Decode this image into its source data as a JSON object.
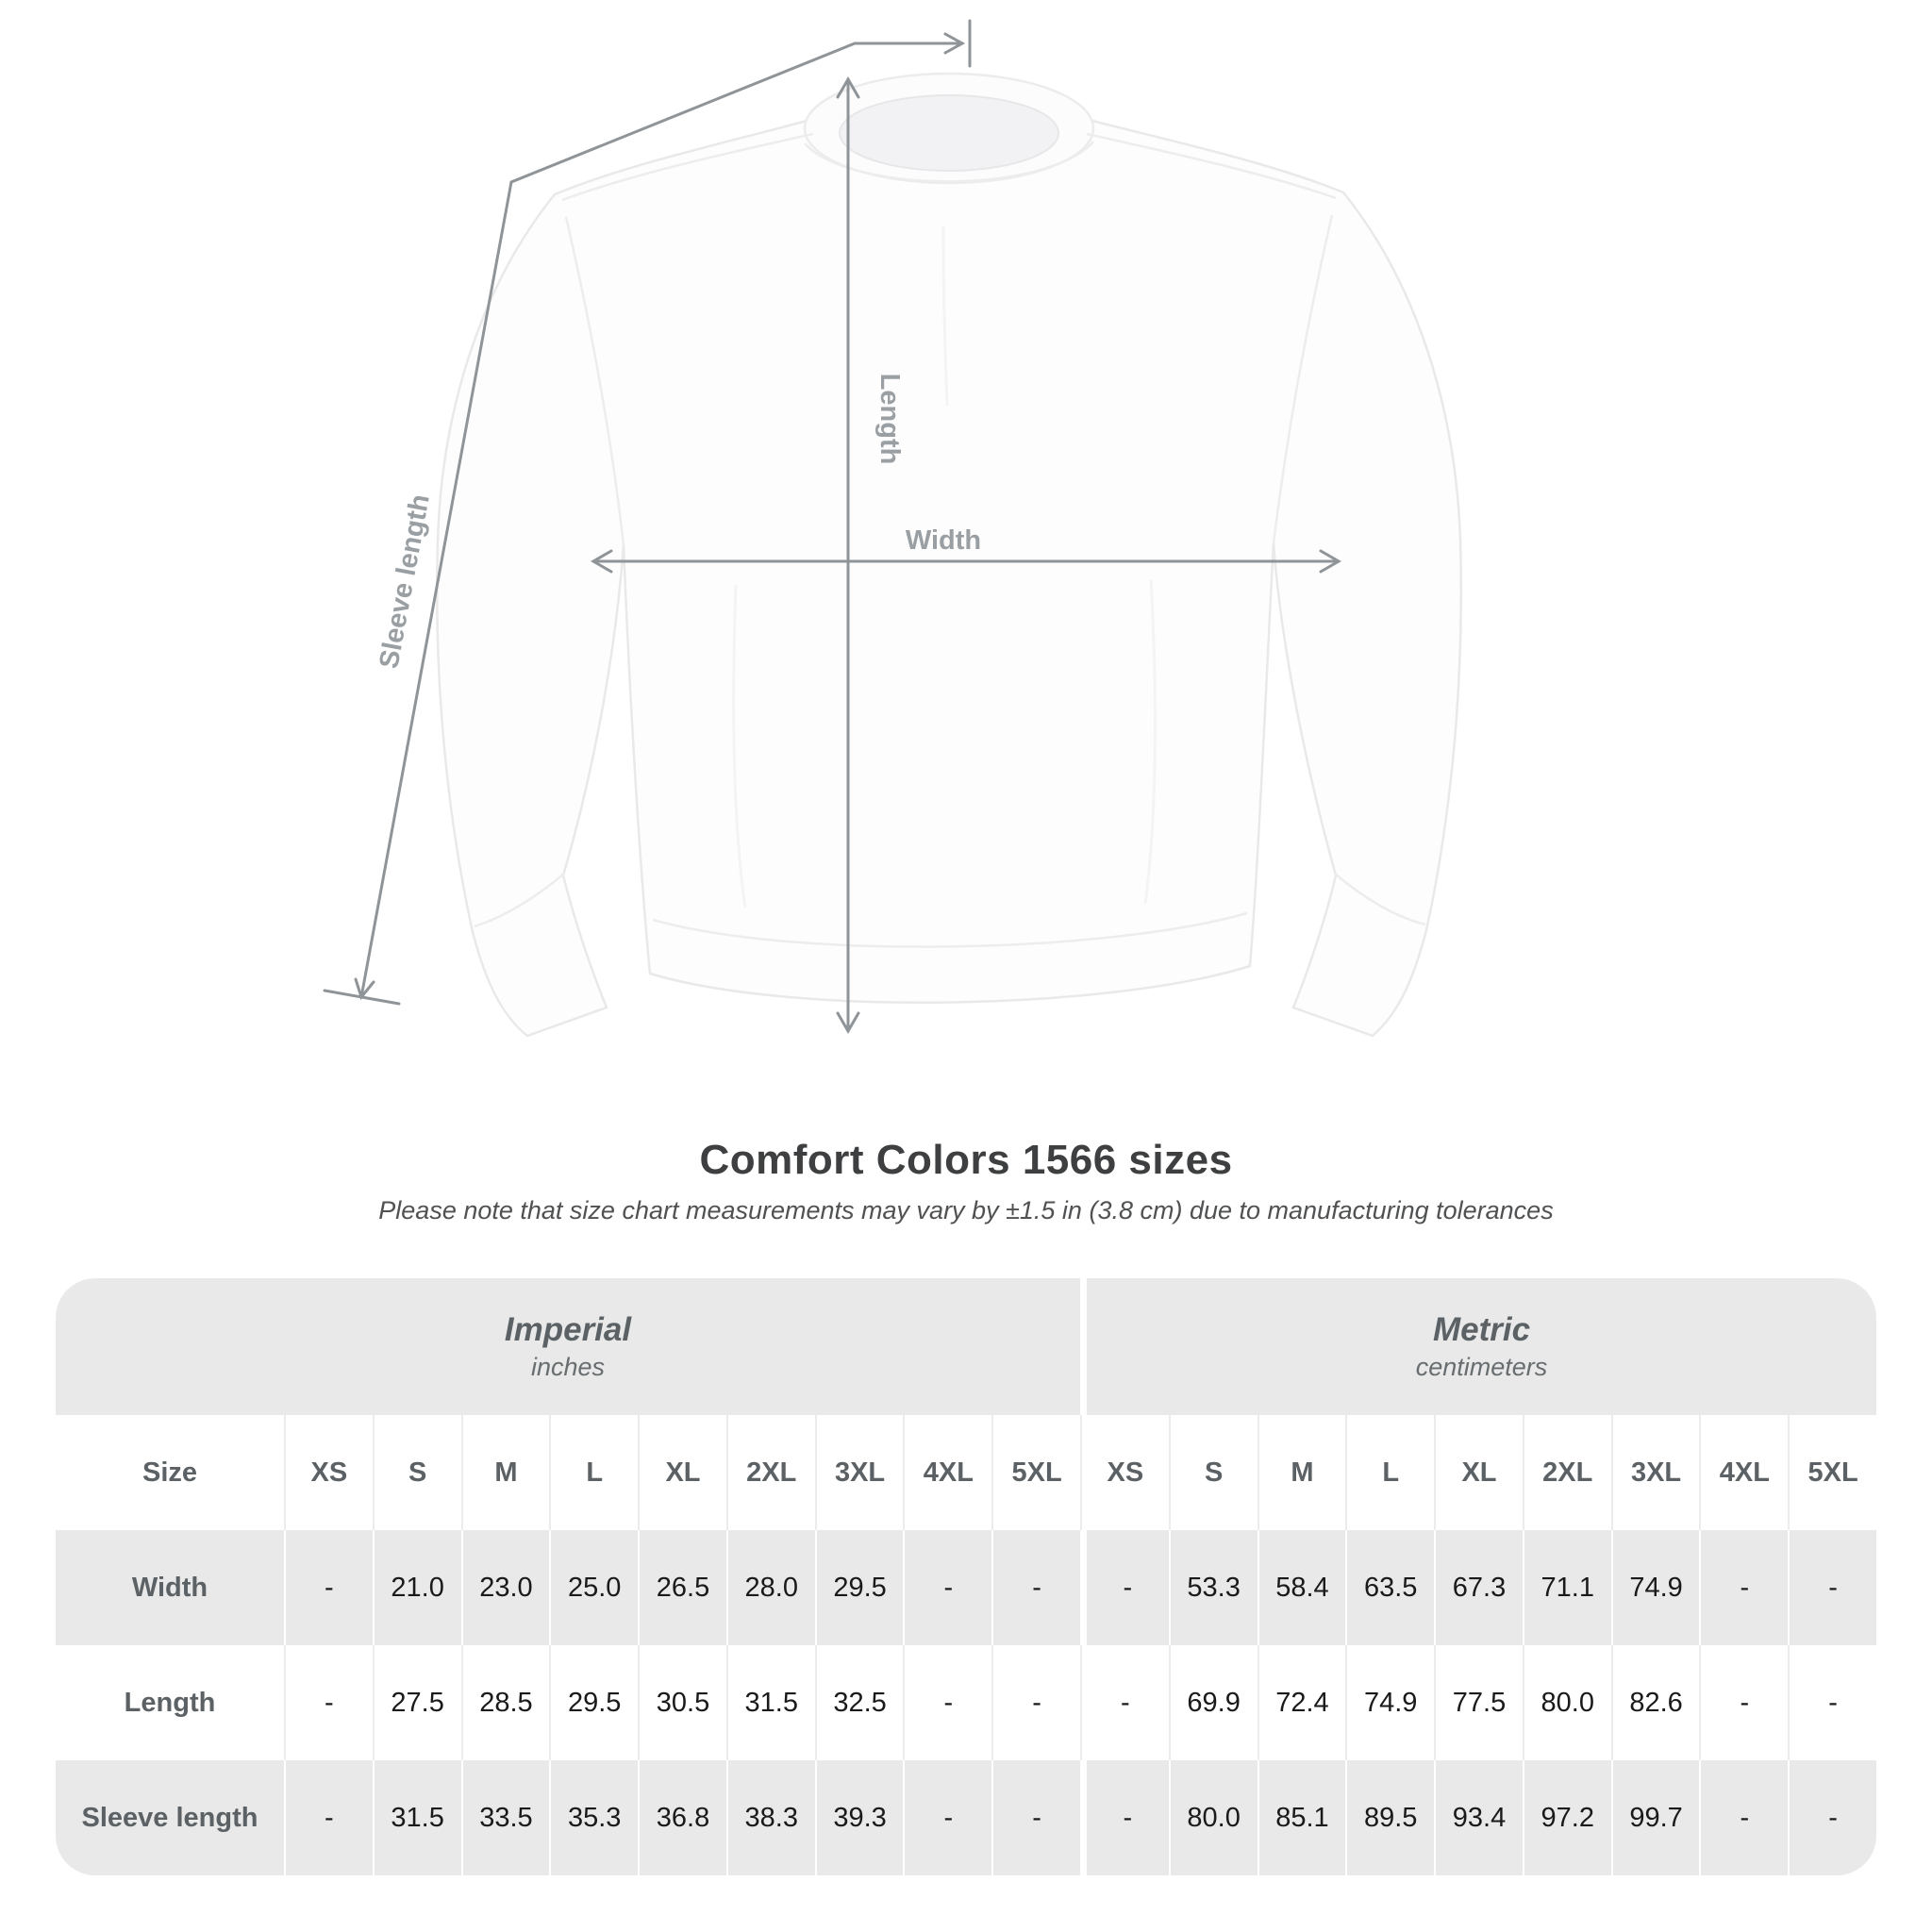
{
  "title": "Comfort Colors 1566 sizes",
  "subtitle": "Please note that size chart measurements may vary by ±1.5 in (3.8 cm) due to manufacturing tolerances",
  "garment": {
    "kind": "crewneck sweatshirt",
    "labels": {
      "length": "Length",
      "width": "Width",
      "sleeve": "Sleeve length"
    }
  },
  "table": {
    "size_label": "Size",
    "unit_groups": [
      {
        "name": "Imperial",
        "unit": "inches"
      },
      {
        "name": "Metric",
        "unit": "centimeters"
      }
    ],
    "sizes": [
      "XS",
      "S",
      "M",
      "L",
      "XL",
      "2XL",
      "3XL",
      "4XL",
      "5XL"
    ],
    "rows": [
      {
        "label": "Width",
        "imperial": [
          "-",
          "21.0",
          "23.0",
          "25.0",
          "26.5",
          "28.0",
          "29.5",
          "-",
          "-"
        ],
        "metric": [
          "-",
          "53.3",
          "58.4",
          "63.5",
          "67.3",
          "71.1",
          "74.9",
          "-",
          "-"
        ]
      },
      {
        "label": "Length",
        "imperial": [
          "-",
          "27.5",
          "28.5",
          "29.5",
          "30.5",
          "31.5",
          "32.5",
          "-",
          "-"
        ],
        "metric": [
          "-",
          "69.9",
          "72.4",
          "74.9",
          "77.5",
          "80.0",
          "82.6",
          "-",
          "-"
        ]
      },
      {
        "label": "Sleeve length",
        "imperial": [
          "-",
          "31.5",
          "33.5",
          "35.3",
          "36.8",
          "38.3",
          "39.3",
          "-",
          "-"
        ],
        "metric": [
          "-",
          "80.0",
          "85.1",
          "89.5",
          "93.4",
          "97.2",
          "99.7",
          "-",
          "-"
        ]
      }
    ]
  },
  "colors": {
    "table_band_gray": "#e9e9e9",
    "measurement_line_gray": "#8f9498",
    "garment_label_gray": "#999fa2",
    "header_text_gray": "#5b6164",
    "title_text": "#3d3f40",
    "value_text": "#1a1a1a"
  }
}
